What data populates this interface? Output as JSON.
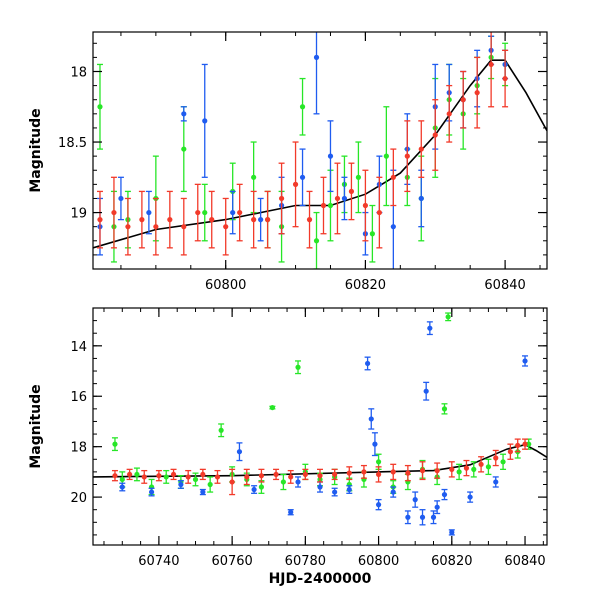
{
  "chart_data": [
    {
      "type": "scatter",
      "panel": "top",
      "title": "",
      "xlabel": "",
      "ylabel": "Magnitude",
      "xlim": [
        60781,
        60846
      ],
      "ylim": [
        19.4,
        17.72
      ],
      "y_inverted": true,
      "xticks": [
        60800,
        60820,
        60840
      ],
      "xtick_labels": [
        "60800",
        "60820",
        "60840"
      ],
      "yticks": [
        18,
        18.5,
        19
      ],
      "ytick_labels": [
        "18",
        "18.5",
        "19"
      ],
      "grid": false,
      "legend": "none",
      "series": [
        {
          "color": "#27e627",
          "marker": "circle with error bars",
          "x": [
            60782,
            60784,
            60786,
            60790,
            60794,
            60797,
            60801,
            60804,
            60806,
            60808,
            60811,
            60813,
            60815,
            60817,
            60819,
            60821,
            60823,
            60826,
            60828,
            60830,
            60832,
            60834,
            60836,
            60838,
            60840
          ],
          "y": [
            18.25,
            19.1,
            19.05,
            18.9,
            18.55,
            19.0,
            18.85,
            18.75,
            19.05,
            19.1,
            18.25,
            19.2,
            18.95,
            18.8,
            18.75,
            19.15,
            18.6,
            18.75,
            18.9,
            18.4,
            18.2,
            18.3,
            18.1,
            17.9,
            17.95
          ],
          "yerr": [
            0.3,
            0.25,
            0.2,
            0.3,
            0.3,
            0.2,
            0.2,
            0.25,
            0.2,
            0.25,
            0.2,
            0.2,
            0.25,
            0.2,
            0.25,
            0.2,
            0.35,
            0.2,
            0.3,
            0.35,
            0.25,
            0.25,
            0.2,
            0.15,
            0.15
          ]
        },
        {
          "color": "#1f5cf0",
          "marker": "circle with error bars",
          "x": [
            60782,
            60785,
            60789,
            60794,
            60797,
            60801,
            60805,
            60808,
            60811,
            60813,
            60815,
            60817,
            60820,
            60822,
            60824,
            60826,
            60828,
            60830,
            60832,
            60834,
            60836,
            60838,
            60840
          ],
          "y": [
            19.1,
            18.9,
            19.0,
            18.3,
            18.35,
            19.0,
            19.05,
            18.95,
            18.75,
            17.9,
            18.6,
            18.9,
            19.15,
            18.8,
            19.1,
            18.55,
            18.9,
            18.25,
            18.15,
            18.2,
            18.05,
            17.85,
            17.95
          ],
          "yerr": [
            0.2,
            0.15,
            0.15,
            0.05,
            0.4,
            0.15,
            0.15,
            0.2,
            0.2,
            0.4,
            0.25,
            0.15,
            0.15,
            0.2,
            0.4,
            0.25,
            0.2,
            0.3,
            0.2,
            0.2,
            0.2,
            0.1,
            0.1
          ]
        },
        {
          "color": "#f23a2a",
          "marker": "circle with error bars",
          "x": [
            60782,
            60784,
            60786,
            60788,
            60790,
            60792,
            60794,
            60796,
            60798,
            60800,
            60802,
            60804,
            60806,
            60808,
            60810,
            60812,
            60814,
            60816,
            60818,
            60820,
            60822,
            60824,
            60826,
            60828,
            60830,
            60832,
            60834,
            60836,
            60838,
            60840
          ],
          "y": [
            19.05,
            19.0,
            19.1,
            19.05,
            19.1,
            19.05,
            19.1,
            19.0,
            19.05,
            19.1,
            19.0,
            19.05,
            19.05,
            18.9,
            18.8,
            19.05,
            18.95,
            18.9,
            18.85,
            18.95,
            19.0,
            18.75,
            18.6,
            18.55,
            18.45,
            18.3,
            18.2,
            18.15,
            17.95,
            18.05
          ],
          "yerr": [
            0.2,
            0.25,
            0.2,
            0.2,
            0.2,
            0.2,
            0.2,
            0.2,
            0.2,
            0.2,
            0.2,
            0.2,
            0.2,
            0.25,
            0.3,
            0.2,
            0.2,
            0.25,
            0.2,
            0.25,
            0.25,
            0.2,
            0.25,
            0.2,
            0.25,
            0.2,
            0.2,
            0.25,
            0.3,
            0.2
          ]
        }
      ],
      "model_curve": {
        "color": "#000000",
        "x": [
          60781,
          60790,
          60800,
          60810,
          60815,
          60820,
          60825,
          60830,
          60835,
          60838,
          60840,
          60843,
          60846
        ],
        "y": [
          19.25,
          19.12,
          19.05,
          18.95,
          18.95,
          18.87,
          18.72,
          18.45,
          18.1,
          17.92,
          17.92,
          18.15,
          18.42
        ]
      }
    },
    {
      "type": "scatter",
      "panel": "bottom",
      "title": "",
      "xlabel": "HJD-2400000",
      "ylabel": "Magnitude",
      "xlim": [
        60722,
        60846
      ],
      "ylim": [
        21.9,
        12.5
      ],
      "y_inverted": true,
      "xticks": [
        60740,
        60760,
        60780,
        60800,
        60820,
        60840
      ],
      "xtick_labels": [
        "60740",
        "60760",
        "60780",
        "60800",
        "60820",
        "60840"
      ],
      "yticks": [
        14,
        16,
        18,
        20
      ],
      "ytick_labels": [
        "14",
        "16",
        "18",
        "20"
      ],
      "grid": false,
      "legend": "none",
      "series": [
        {
          "color": "#27e627",
          "marker": "circle with error bars",
          "x": [
            60728,
            60730,
            60734,
            60738,
            60742,
            60746,
            60750,
            60754,
            60757,
            60760,
            60764,
            60768,
            60771,
            60774,
            60778,
            60780,
            60784,
            60788,
            60792,
            60796,
            60800,
            60804,
            60808,
            60812,
            60816,
            60818,
            60819,
            60822,
            60826,
            60830,
            60834,
            60838,
            60841
          ],
          "y": [
            17.9,
            19.3,
            19.1,
            19.6,
            19.2,
            19.4,
            19.3,
            19.5,
            17.35,
            19.1,
            19.3,
            19.6,
            16.45,
            19.4,
            14.85,
            19.0,
            19.3,
            19.2,
            19.5,
            19.3,
            18.6,
            19.6,
            19.4,
            18.9,
            19.2,
            16.5,
            12.85,
            19.0,
            18.9,
            18.8,
            18.6,
            18.2,
            17.9
          ],
          "yerr": [
            0.25,
            0.3,
            0.25,
            0.3,
            0.25,
            0.25,
            0.25,
            0.3,
            0.25,
            0.3,
            0.25,
            0.25,
            0.05,
            0.3,
            0.25,
            0.3,
            0.25,
            0.3,
            0.25,
            0.3,
            0.3,
            0.25,
            0.3,
            0.35,
            0.3,
            0.2,
            0.15,
            0.3,
            0.3,
            0.3,
            0.3,
            0.25,
            0.2
          ]
        },
        {
          "color": "#1f5cf0",
          "marker": "circle with error bars",
          "x": [
            60730,
            60738,
            60746,
            60752,
            60762,
            60766,
            60776,
            60778,
            60784,
            60788,
            60792,
            60797,
            60798,
            60799,
            60800,
            60804,
            60808,
            60810,
            60812,
            60813,
            60814,
            60815,
            60816,
            60818,
            60820,
            60825,
            60832,
            60840
          ],
          "y": [
            19.6,
            19.8,
            19.5,
            19.8,
            18.2,
            19.7,
            20.6,
            19.4,
            19.6,
            19.8,
            19.7,
            14.7,
            16.9,
            17.9,
            20.3,
            19.8,
            20.8,
            20.1,
            20.8,
            15.8,
            13.3,
            20.8,
            20.4,
            19.9,
            21.4,
            20.0,
            19.4,
            14.6
          ],
          "yerr": [
            0.15,
            0.15,
            0.15,
            0.1,
            0.35,
            0.15,
            0.1,
            0.2,
            0.2,
            0.15,
            0.15,
            0.25,
            0.4,
            0.45,
            0.2,
            0.2,
            0.25,
            0.3,
            0.3,
            0.35,
            0.25,
            0.25,
            0.25,
            0.2,
            0.1,
            0.2,
            0.2,
            0.2
          ]
        },
        {
          "color": "#f23a2a",
          "marker": "circle with error bars",
          "x": [
            60728,
            60732,
            60736,
            60740,
            60744,
            60748,
            60752,
            60756,
            60760,
            60764,
            60768,
            60772,
            60776,
            60780,
            60784,
            60788,
            60792,
            60796,
            60800,
            60804,
            60808,
            60812,
            60816,
            60820,
            60824,
            60828,
            60832,
            60836,
            60838,
            60840
          ],
          "y": [
            19.15,
            19.1,
            19.2,
            19.15,
            19.1,
            19.2,
            19.1,
            19.2,
            19.4,
            19.2,
            19.15,
            19.1,
            19.2,
            19.1,
            19.15,
            19.1,
            19.05,
            19.0,
            19.1,
            19.0,
            19.05,
            18.95,
            18.95,
            18.9,
            18.85,
            18.7,
            18.45,
            18.2,
            17.95,
            17.9
          ],
          "yerr": [
            0.2,
            0.2,
            0.25,
            0.2,
            0.2,
            0.25,
            0.2,
            0.25,
            0.5,
            0.3,
            0.25,
            0.2,
            0.25,
            0.2,
            0.25,
            0.2,
            0.25,
            0.25,
            0.3,
            0.3,
            0.3,
            0.35,
            0.3,
            0.3,
            0.3,
            0.3,
            0.3,
            0.3,
            0.25,
            0.2
          ]
        }
      ],
      "model_curve": {
        "color": "#000000",
        "x": [
          60722,
          60760,
          60800,
          60815,
          60825,
          60835,
          60840,
          60843,
          60846
        ],
        "y": [
          19.2,
          19.15,
          19.0,
          18.95,
          18.72,
          18.1,
          17.92,
          18.15,
          18.42
        ]
      }
    }
  ]
}
